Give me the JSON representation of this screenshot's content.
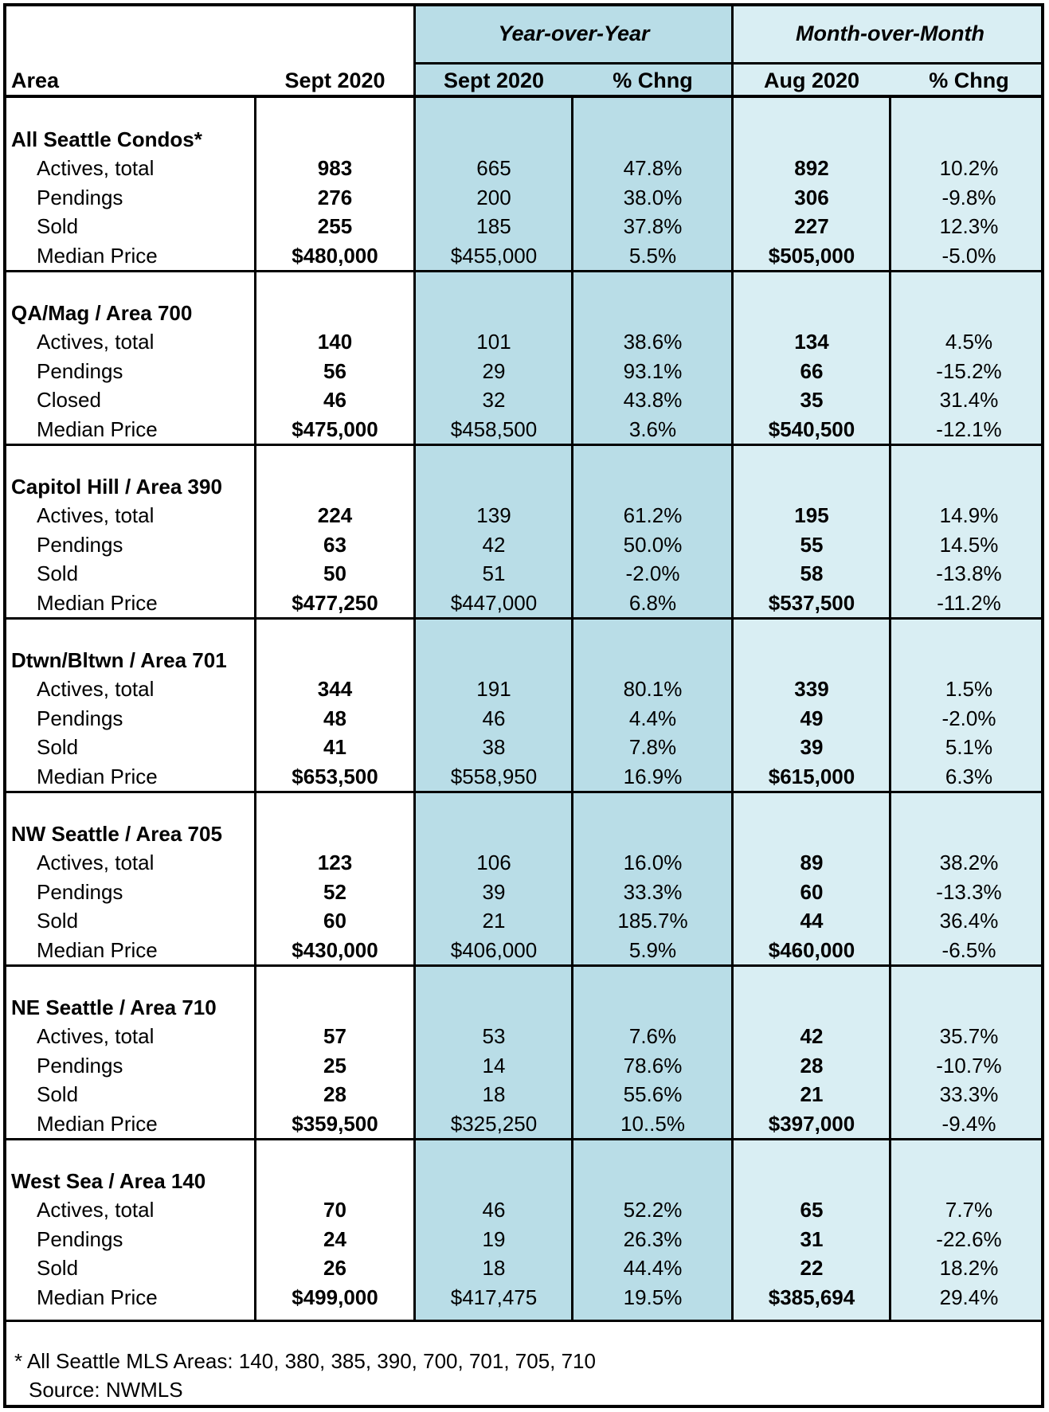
{
  "header": {
    "group_yoy": "Year-over-Year",
    "group_mom": "Month-over-Month",
    "col_area": "Area",
    "col_sept": "Sept 2020",
    "col_yoy_sept": "Sept 2020",
    "col_yoy_chg": "% Chng",
    "col_mom_aug": "Aug 2020",
    "col_mom_chg": "% Chng"
  },
  "sections": [
    {
      "title": "All Seattle Condos*",
      "rows": [
        {
          "label": "Actives, total",
          "sept": "983",
          "yoy_sept": "665",
          "yoy_chg": "47.8%",
          "mom_aug": "892",
          "mom_chg": "10.2%"
        },
        {
          "label": "Pendings",
          "sept": "276",
          "yoy_sept": "200",
          "yoy_chg": "38.0%",
          "mom_aug": "306",
          "mom_chg": "-9.8%"
        },
        {
          "label": "Sold",
          "sept": "255",
          "yoy_sept": "185",
          "yoy_chg": "37.8%",
          "mom_aug": "227",
          "mom_chg": "12.3%"
        },
        {
          "label": "Median Price",
          "sept": "$480,000",
          "yoy_sept": "$455,000",
          "yoy_chg": "5.5%",
          "mom_aug": "$505,000",
          "mom_chg": "-5.0%"
        }
      ]
    },
    {
      "title": "QA/Mag  / Area 700",
      "rows": [
        {
          "label": "Actives, total",
          "sept": "140",
          "yoy_sept": "101",
          "yoy_chg": "38.6%",
          "mom_aug": "134",
          "mom_chg": "4.5%"
        },
        {
          "label": "Pendings",
          "sept": "56",
          "yoy_sept": "29",
          "yoy_chg": "93.1%",
          "mom_aug": "66",
          "mom_chg": "-15.2%"
        },
        {
          "label": "Closed",
          "sept": "46",
          "yoy_sept": "32",
          "yoy_chg": "43.8%",
          "mom_aug": "35",
          "mom_chg": "31.4%"
        },
        {
          "label": "Median Price",
          "sept": "$475,000",
          "yoy_sept": "$458,500",
          "yoy_chg": "3.6%",
          "mom_aug": "$540,500",
          "mom_chg": "-12.1%"
        }
      ]
    },
    {
      "title": "Capitol Hill / Area 390",
      "rows": [
        {
          "label": "Actives, total",
          "sept": "224",
          "yoy_sept": "139",
          "yoy_chg": "61.2%",
          "mom_aug": "195",
          "mom_chg": "14.9%"
        },
        {
          "label": "Pendings",
          "sept": "63",
          "yoy_sept": "42",
          "yoy_chg": "50.0%",
          "mom_aug": "55",
          "mom_chg": "14.5%"
        },
        {
          "label": "Sold",
          "sept": "50",
          "yoy_sept": "51",
          "yoy_chg": "-2.0%",
          "mom_aug": "58",
          "mom_chg": "-13.8%"
        },
        {
          "label": "Median Price",
          "sept": "$477,250",
          "yoy_sept": "$447,000",
          "yoy_chg": "6.8%",
          "mom_aug": "$537,500",
          "mom_chg": "-11.2%"
        }
      ]
    },
    {
      "title": "Dtwn/Bltwn / Area 701",
      "rows": [
        {
          "label": "Actives, total",
          "sept": "344",
          "yoy_sept": "191",
          "yoy_chg": "80.1%",
          "mom_aug": "339",
          "mom_chg": "1.5%"
        },
        {
          "label": "Pendings",
          "sept": "48",
          "yoy_sept": "46",
          "yoy_chg": "4.4%",
          "mom_aug": "49",
          "mom_chg": "-2.0%"
        },
        {
          "label": "Sold",
          "sept": "41",
          "yoy_sept": "38",
          "yoy_chg": "7.8%",
          "mom_aug": "39",
          "mom_chg": "5.1%"
        },
        {
          "label": "Median Price",
          "sept": "$653,500",
          "yoy_sept": "$558,950",
          "yoy_chg": "16.9%",
          "mom_aug": "$615,000",
          "mom_chg": "6.3%"
        }
      ]
    },
    {
      "title": "NW Seattle / Area 705",
      "rows": [
        {
          "label": "Actives, total",
          "sept": "123",
          "yoy_sept": "106",
          "yoy_chg": "16.0%",
          "mom_aug": "89",
          "mom_chg": "38.2%"
        },
        {
          "label": "Pendings",
          "sept": "52",
          "yoy_sept": "39",
          "yoy_chg": "33.3%",
          "mom_aug": "60",
          "mom_chg": "-13.3%"
        },
        {
          "label": "Sold",
          "sept": "60",
          "yoy_sept": "21",
          "yoy_chg": "185.7%",
          "mom_aug": "44",
          "mom_chg": "36.4%"
        },
        {
          "label": "Median Price",
          "sept": "$430,000",
          "yoy_sept": "$406,000",
          "yoy_chg": "5.9%",
          "mom_aug": "$460,000",
          "mom_chg": "-6.5%"
        }
      ]
    },
    {
      "title": "NE Seattle  / Area 710",
      "rows": [
        {
          "label": "Actives, total",
          "sept": "57",
          "yoy_sept": "53",
          "yoy_chg": "7.6%",
          "mom_aug": "42",
          "mom_chg": "35.7%"
        },
        {
          "label": "Pendings",
          "sept": "25",
          "yoy_sept": "14",
          "yoy_chg": "78.6%",
          "mom_aug": "28",
          "mom_chg": "-10.7%"
        },
        {
          "label": "Sold",
          "sept": "28",
          "yoy_sept": "18",
          "yoy_chg": "55.6%",
          "mom_aug": "21",
          "mom_chg": "33.3%"
        },
        {
          "label": "Median Price",
          "sept": "$359,500",
          "yoy_sept": "$325,250",
          "yoy_chg": "10..5%",
          "mom_aug": "$397,000",
          "mom_chg": "-9.4%"
        }
      ]
    },
    {
      "title": "West Sea / Area 140",
      "rows": [
        {
          "label": "Actives, total",
          "sept": "70",
          "yoy_sept": "46",
          "yoy_chg": "52.2%",
          "mom_aug": "65",
          "mom_chg": "7.7%"
        },
        {
          "label": "Pendings",
          "sept": "24",
          "yoy_sept": "19",
          "yoy_chg": "26.3%",
          "mom_aug": "31",
          "mom_chg": "-22.6%"
        },
        {
          "label": "Sold",
          "sept": "26",
          "yoy_sept": "18",
          "yoy_chg": "44.4%",
          "mom_aug": "22",
          "mom_chg": "18.2%"
        },
        {
          "label": "Median Price",
          "sept": "$499,000",
          "yoy_sept": "$417,475",
          "yoy_chg": "19.5%",
          "mom_aug": "$385,694",
          "mom_chg": "29.4%"
        }
      ]
    }
  ],
  "footnote": {
    "line1": "*  All Seattle MLS Areas: 140, 380, 385, 390, 700, 701, 705, 710",
    "line2": "Source: NWMLS"
  }
}
